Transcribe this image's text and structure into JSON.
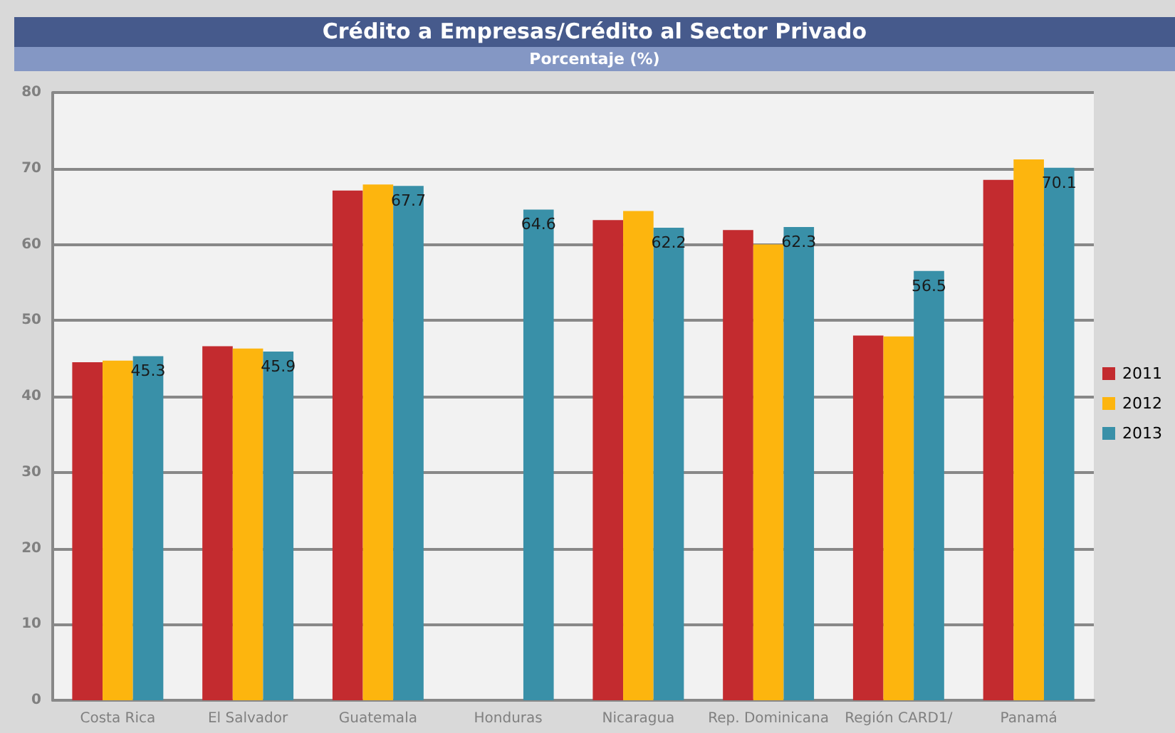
{
  "chart_data": {
    "type": "bar",
    "title": "Crédito a Empresas/Crédito al Sector Privado",
    "subtitle": "Porcentaje (%)",
    "categories": [
      "Costa Rica",
      "El Salvador",
      "Guatemala",
      "Honduras",
      "Nicaragua",
      "Rep. Dominicana",
      "Región CARD1/",
      "Panamá"
    ],
    "series": [
      {
        "name": "2011",
        "color": "#c32b2f",
        "values": [
          44.5,
          46.6,
          67.1,
          null,
          63.2,
          61.9,
          48.0,
          68.5
        ]
      },
      {
        "name": "2012",
        "color": "#fdb50e",
        "values": [
          44.7,
          46.3,
          67.9,
          null,
          64.4,
          60.0,
          47.9,
          71.2
        ]
      },
      {
        "name": "2013",
        "color": "#3990a8",
        "values": [
          45.3,
          45.9,
          67.7,
          64.6,
          62.2,
          62.3,
          56.5,
          70.1
        ],
        "value_labels": [
          "45.3",
          "45.9",
          "67.7",
          "64.6",
          "62.2",
          "62.3",
          "56.5",
          "70.1"
        ]
      }
    ],
    "ylim": [
      0,
      80
    ],
    "yticks": [
      0,
      10,
      20,
      30,
      40,
      50,
      60,
      70,
      80
    ],
    "grid": "y",
    "legend": "right"
  }
}
